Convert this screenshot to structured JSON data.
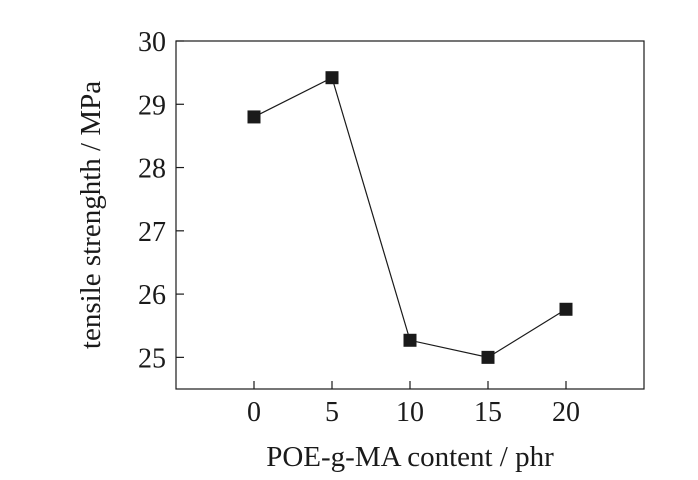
{
  "chart_data": {
    "type": "line",
    "title": "",
    "xlabel": "POE-g-MA content / phr",
    "ylabel": "tensile strenghth / MPa",
    "xlim": [
      -5,
      25
    ],
    "ylim": [
      24.5,
      30
    ],
    "x_ticks": [
      0,
      5,
      10,
      15,
      20
    ],
    "y_ticks": [
      25,
      26,
      27,
      28,
      29,
      30
    ],
    "grid": false,
    "legend": "none",
    "marker": "filled-square",
    "color": "#1a1a1a",
    "series": [
      {
        "x": [
          0,
          5,
          10,
          15,
          20
        ],
        "y": [
          28.8,
          29.42,
          25.27,
          25.0,
          25.76
        ]
      }
    ]
  }
}
